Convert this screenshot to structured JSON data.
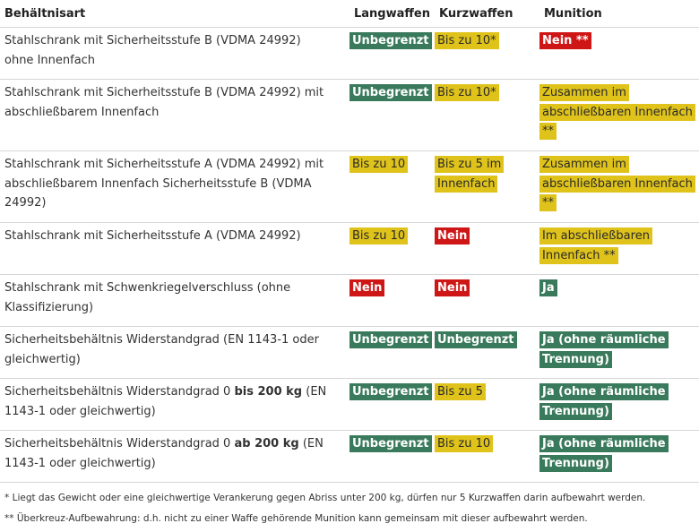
{
  "headers": [
    "Behältnisart",
    "Langwaffen",
    "Kurzwaffen",
    "Munition"
  ],
  "rows": [
    {
      "description": "Stahlschrank mit Sicherheitsstufe B (VDMA 24992) ohne Innenfach",
      "cells": [
        {
          "text": "Unbegrenzt",
          "status": "green"
        },
        {
          "text": "Bis zu 10*",
          "status": "yellow"
        },
        {
          "text": "Nein **",
          "status": "red"
        }
      ]
    },
    {
      "description": "Stahlschrank mit Sicherheitsstufe B (VDMA 24992) mit abschließbarem Innenfach",
      "cells": [
        {
          "text": "Unbegrenzt",
          "status": "green"
        },
        {
          "text": "Bis zu 10*",
          "status": "yellow"
        },
        {
          "text": "Zusammen im abschließbaren Innenfach **",
          "status": "yellow"
        }
      ]
    },
    {
      "description": "Stahlschrank mit Sicherheitsstufe A (VDMA 24992) mit abschließbarem Innenfach Sicherheitsstufe B (VDMA 24992)",
      "cells": [
        {
          "text": "Bis zu 10",
          "status": "yellow"
        },
        {
          "text": "Bis zu 5 im Innenfach",
          "status": "yellow"
        },
        {
          "text": "Zusammen im abschließbaren Innenfach **",
          "status": "yellow"
        }
      ]
    },
    {
      "description": "Stahlschrank mit Sicherheitsstufe A (VDMA 24992)",
      "cells": [
        {
          "text": "Bis zu 10",
          "status": "yellow"
        },
        {
          "text": "Nein",
          "status": "red"
        },
        {
          "text": "Im abschließbaren Innenfach **",
          "status": "yellow"
        }
      ]
    },
    {
      "description": "Stahlschrank mit Schwenkriegelverschluss (ohne Klassifizierung)",
      "cells": [
        {
          "text": "Nein",
          "status": "red"
        },
        {
          "text": "Nein",
          "status": "red"
        },
        {
          "text": "Ja",
          "status": "green"
        }
      ]
    },
    {
      "description": "Sicherheitsbehältnis Widerstandgrad (EN 1143-1 oder gleichwertig)",
      "cells": [
        {
          "text": "Unbegrenzt",
          "status": "green"
        },
        {
          "text": "Unbegrenzt",
          "status": "green"
        },
        {
          "text": "Ja (ohne räumliche Trennung)",
          "status": "green"
        }
      ]
    },
    {
      "description_before": "Sicherheitsbehältnis Widerstandgrad 0 ",
      "description_bold": "bis 200 kg",
      "description_after": " (EN 1143-1 oder gleichwertig)",
      "cells": [
        {
          "text": "Unbegrenzt",
          "status": "green"
        },
        {
          "text": "Bis zu 5",
          "status": "yellow"
        },
        {
          "text": "Ja (ohne räumliche Trennung)",
          "status": "green"
        }
      ]
    },
    {
      "description_before": "Sicherheitsbehältnis Widerstandgrad 0 ",
      "description_bold": "ab 200 kg",
      "description_after": " (EN 1143-1 oder gleichwertig)",
      "cells": [
        {
          "text": "Unbegrenzt",
          "status": "green"
        },
        {
          "text": "Bis zu 10",
          "status": "yellow"
        },
        {
          "text": "Ja (ohne räumliche Trennung)",
          "status": "green"
        }
      ]
    }
  ],
  "footnotes": [
    "*  Liegt das Gewicht oder eine gleichwertige Verankerung gegen Abriss unter 200 kg, dürfen nur 5 Kurzwaffen darin aufbewahrt werden.",
    "** Überkreuz-Aufbewahrung: d.h. nicht zu einer Waffe gehörende Munition kann gemeinsam mit dieser aufbewahrt werden."
  ],
  "colors": {
    "green": "#3a7a5c",
    "yellow": "#dfc31b",
    "red": "#cf1616"
  }
}
